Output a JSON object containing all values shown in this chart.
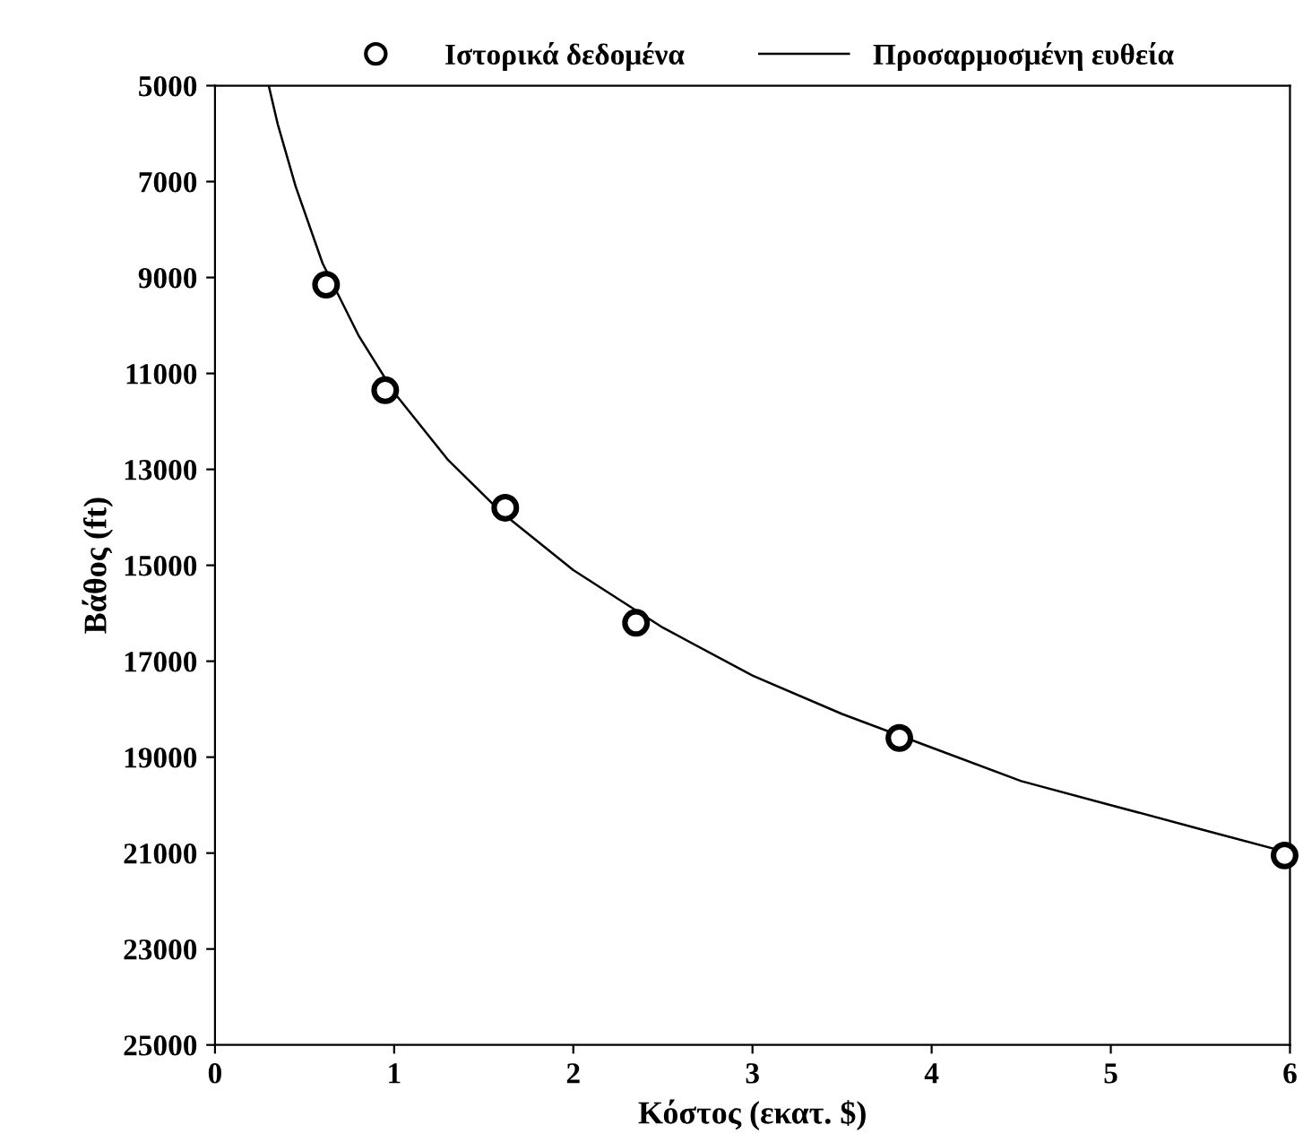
{
  "chart_data": {
    "type": "scatter",
    "xlabel": "Κόστος (εκατ. $)",
    "ylabel": "Βάθος (ft)",
    "xlim": [
      0,
      6
    ],
    "xticks": [
      0,
      1,
      2,
      3,
      4,
      5,
      6
    ],
    "ylim": [
      25000,
      5000
    ],
    "yticks": [
      5000,
      7000,
      9000,
      11000,
      13000,
      15000,
      17000,
      19000,
      21000,
      23000,
      25000
    ],
    "legend": "top",
    "grid": false,
    "series": [
      {
        "name": "Ιστορικά δεδομένα",
        "marker": "circle",
        "color": "#000000",
        "x": [
          0.62,
          0.95,
          1.62,
          2.35,
          3.82,
          5.97
        ],
        "values": [
          9150,
          11350,
          13800,
          16200,
          18600,
          21050
        ]
      },
      {
        "name": "Προσαρμοσμένη ευθεία",
        "type": "line",
        "marker": "none",
        "line_style": "solid",
        "color": "#000000",
        "x": [
          0.3,
          0.35,
          0.45,
          0.6,
          0.8,
          1.0,
          1.3,
          1.6,
          2.0,
          2.5,
          3.0,
          3.5,
          4.0,
          4.5,
          5.0,
          5.5,
          6.0
        ],
        "values": [
          5000,
          5800,
          7100,
          8700,
          10200,
          11400,
          12800,
          13900,
          15100,
          16300,
          17300,
          18100,
          18800,
          19500,
          20000,
          20500,
          21000
        ]
      }
    ]
  }
}
